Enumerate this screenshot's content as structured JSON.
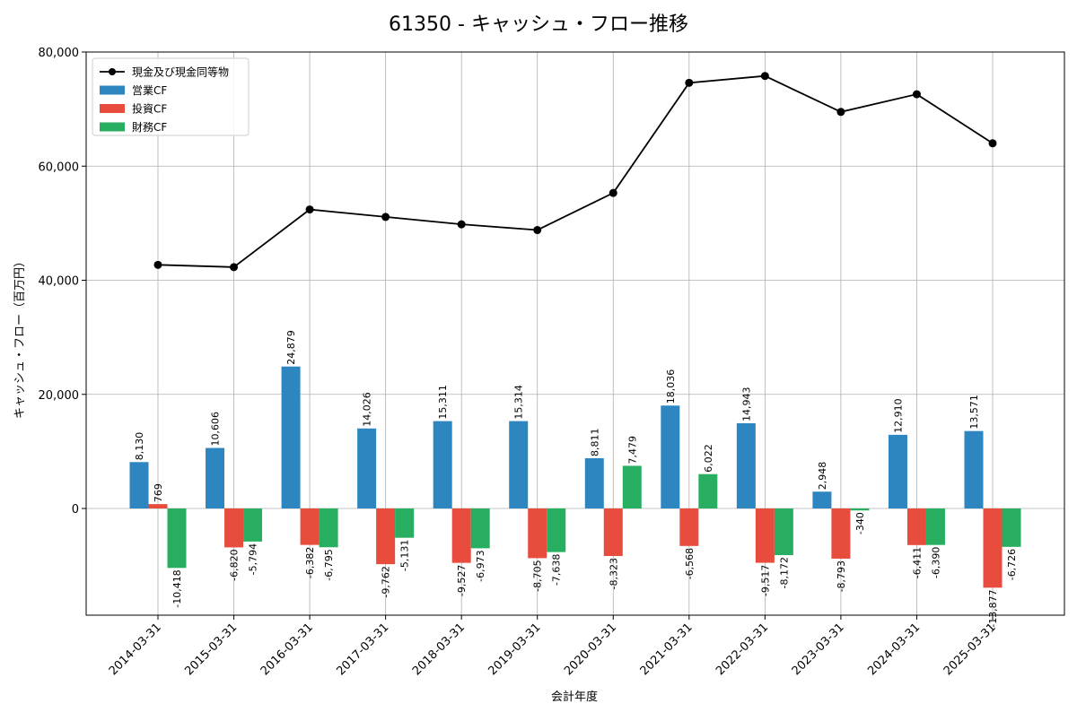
{
  "chart_data": {
    "type": "bar",
    "title": "61350 - キャッシュ・フロー推移",
    "xlabel": "会計年度",
    "ylabel": "キャッシュ・フロー（百万円）",
    "categories": [
      "2014-03-31",
      "2015-03-31",
      "2016-03-31",
      "2017-03-31",
      "2018-03-31",
      "2019-03-31",
      "2020-03-31",
      "2021-03-31",
      "2022-03-31",
      "2023-03-31",
      "2024-03-31",
      "2025-03-31"
    ],
    "ylim": [
      -18700,
      80000
    ],
    "yticks": [
      0,
      20000,
      40000,
      60000,
      80000
    ],
    "ytick_labels": [
      "0",
      "20,000",
      "40,000",
      "60,000",
      "80,000"
    ],
    "grid": true,
    "legend_position": "top-left",
    "series": [
      {
        "name": "営業CF",
        "kind": "bar",
        "color": "#2e86c1",
        "values": [
          8130,
          10606,
          24879,
          14026,
          15311,
          15314,
          8811,
          18036,
          14943,
          2948,
          12910,
          13571
        ],
        "labels": [
          "8,130",
          "10,606",
          "24,879",
          "14,026",
          "15,311",
          "15,314",
          "8,811",
          "18,036",
          "14,943",
          "2,948",
          "12,910",
          "13,571"
        ]
      },
      {
        "name": "投資CF",
        "kind": "bar",
        "color": "#e74c3c",
        "values": [
          769,
          -6820,
          -6382,
          -9762,
          -9527,
          -8705,
          -8323,
          -6568,
          -9517,
          -8793,
          -6411,
          -13877
        ],
        "labels": [
          "769",
          "-6,820",
          "-6,382",
          "-9,762",
          "-9,527",
          "-8,705",
          "-8,323",
          "-6,568",
          "-9,517",
          "-8,793",
          "-6,411",
          "-13,877"
        ]
      },
      {
        "name": "財務CF",
        "kind": "bar",
        "color": "#27ae60",
        "values": [
          -10418,
          -5794,
          -6795,
          -5131,
          -6973,
          -7638,
          7479,
          6022,
          -8172,
          -340,
          -6390,
          -6726
        ],
        "labels": [
          "-10,418",
          "-5,794",
          "-6,795",
          "-5,131",
          "-6,973",
          "-7,638",
          "7,479",
          "6,022",
          "-8,172",
          "-340",
          "-6,390",
          "-6,726"
        ]
      },
      {
        "name": "現金及び現金同等物",
        "kind": "line",
        "color": "#000000",
        "values": [
          42700,
          42300,
          52400,
          51100,
          49800,
          48800,
          55300,
          74600,
          75800,
          69500,
          72600,
          64000
        ]
      }
    ]
  }
}
